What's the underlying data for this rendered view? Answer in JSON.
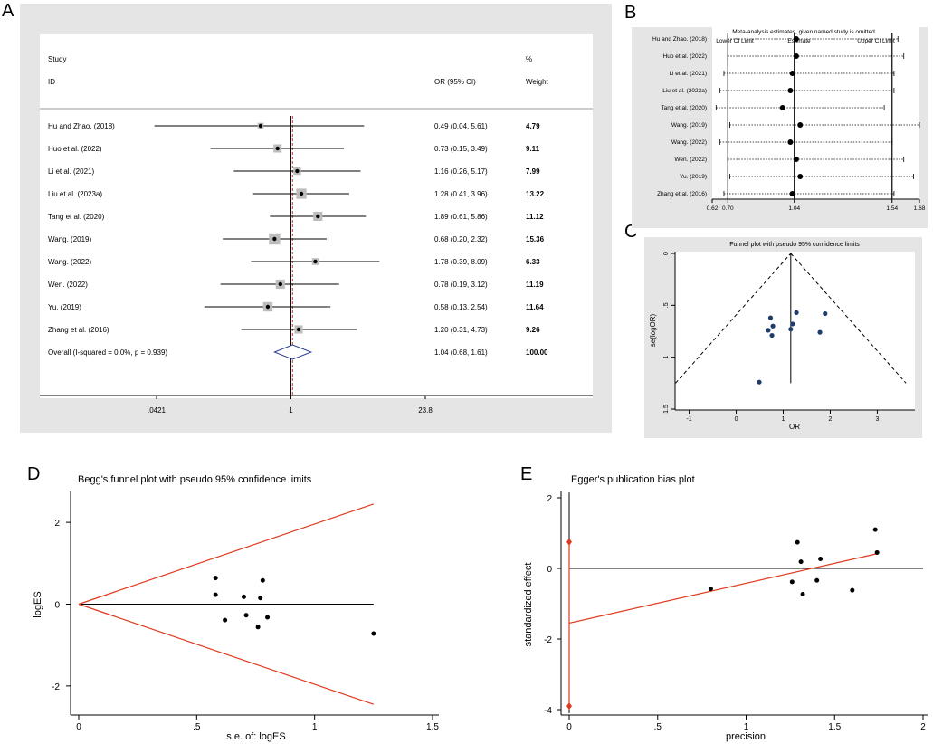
{
  "panels": {
    "A": "A",
    "B": "B",
    "C": "C",
    "D": "D",
    "E": "E"
  },
  "chart_data": [
    {
      "id": "A",
      "type": "forest",
      "col_study": "Study",
      "col_id": "ID",
      "col_pct": "%",
      "col_or": "OR (95% CI)",
      "col_weight": "Weight",
      "xticks": [
        ".0421",
        "1",
        "23.8"
      ],
      "xlim_log": [
        0.0421,
        23.8
      ],
      "studies": [
        {
          "name": "Hu and Zhao. (2018)",
          "or": 0.49,
          "lo": 0.04,
          "hi": 5.61,
          "ci": "0.49 (0.04, 5.61)",
          "weight": "4.79"
        },
        {
          "name": "Huo et al. (2022)",
          "or": 0.73,
          "lo": 0.15,
          "hi": 3.49,
          "ci": "0.73 (0.15, 3.49)",
          "weight": "9.11"
        },
        {
          "name": "Li et al. (2021)",
          "or": 1.16,
          "lo": 0.26,
          "hi": 5.17,
          "ci": "1.16 (0.26, 5.17)",
          "weight": "7.99"
        },
        {
          "name": "Liu et al. (2023a)",
          "or": 1.28,
          "lo": 0.41,
          "hi": 3.96,
          "ci": "1.28 (0.41, 3.96)",
          "weight": "13.22"
        },
        {
          "name": "Tang et al. (2020)",
          "or": 1.89,
          "lo": 0.61,
          "hi": 5.86,
          "ci": "1.89 (0.61, 5.86)",
          "weight": "11.12"
        },
        {
          "name": "Wang. (2019)",
          "or": 0.68,
          "lo": 0.2,
          "hi": 2.32,
          "ci": "0.68 (0.20, 2.32)",
          "weight": "15.36"
        },
        {
          "name": "Wang. (2022)",
          "or": 1.78,
          "lo": 0.39,
          "hi": 8.09,
          "ci": "1.78 (0.39, 8.09)",
          "weight": "6.33"
        },
        {
          "name": "Wen. (2022)",
          "or": 0.78,
          "lo": 0.19,
          "hi": 3.12,
          "ci": "0.78 (0.19, 3.12)",
          "weight": "11.19"
        },
        {
          "name": "Yu. (2019)",
          "or": 0.58,
          "lo": 0.13,
          "hi": 2.54,
          "ci": "0.58 (0.13, 2.54)",
          "weight": "11.64"
        },
        {
          "name": "Zhang et al. (2016)",
          "or": 1.2,
          "lo": 0.31,
          "hi": 4.73,
          "ci": "1.20 (0.31, 4.73)",
          "weight": "9.26"
        }
      ],
      "overall": {
        "label": "Overall  (I-squared = 0.0%, p = 0.939)",
        "or": 1.04,
        "lo": 0.68,
        "hi": 1.61,
        "ci": "1.04 (0.68, 1.61)",
        "weight": "100.00"
      }
    },
    {
      "id": "B",
      "type": "sensitivity",
      "title": "Meta-analysis estimates, given named study is omitted",
      "lower_label": "Lower CI Limit",
      "estimate_label": "Estimate",
      "upper_label": "Upper CI Limit",
      "xlim": [
        0.62,
        1.68
      ],
      "xticks": [
        0.62,
        0.7,
        1.04,
        1.54,
        1.68
      ],
      "xtick_labels": [
        "0.62",
        "0.70",
        "1.04",
        "1.54",
        "1.68"
      ],
      "ref_lines": [
        0.7,
        1.04,
        1.54
      ],
      "rows": [
        {
          "name": "Hu and Zhao. (2018)",
          "est": 1.05,
          "lo": 0.7,
          "hi": 1.57
        },
        {
          "name": "Huo et al. (2022)",
          "est": 1.05,
          "lo": 0.7,
          "hi": 1.6
        },
        {
          "name": "Li et al. (2021)",
          "est": 1.03,
          "lo": 0.68,
          "hi": 1.55
        },
        {
          "name": "Liu et al. (2023a)",
          "est": 1.02,
          "lo": 0.66,
          "hi": 1.55
        },
        {
          "name": "Tang et al. (2020)",
          "est": 0.98,
          "lo": 0.64,
          "hi": 1.5
        },
        {
          "name": "Wang. (2019)",
          "est": 1.07,
          "lo": 0.71,
          "hi": 1.68
        },
        {
          "name": "Wang. (2022)",
          "est": 1.02,
          "lo": 0.66,
          "hi": 1.54
        },
        {
          "name": "Wen. (2022)",
          "est": 1.05,
          "lo": 0.7,
          "hi": 1.6
        },
        {
          "name": "Yu. (2019)",
          "est": 1.07,
          "lo": 0.71,
          "hi": 1.65
        },
        {
          "name": "Zhang et al. (2016)",
          "est": 1.03,
          "lo": 0.68,
          "hi": 1.55
        }
      ]
    },
    {
      "id": "C",
      "type": "scatter",
      "title": "Funnel plot with pseudo 95% confidence limits",
      "xlabel": "OR",
      "ylabel": "se(logOR)",
      "xlim": [
        -1.3,
        3.8
      ],
      "ylim": [
        0,
        1.5
      ],
      "xticks": [
        "-1",
        "0",
        "1",
        "2",
        "3"
      ],
      "yticks": [
        "0",
        ".5",
        "1",
        "1.5"
      ],
      "center": 1.16,
      "points": [
        [
          0.73,
          0.62
        ],
        [
          0.78,
          0.7
        ],
        [
          0.68,
          0.74
        ],
        [
          0.76,
          0.79
        ],
        [
          1.16,
          0.73
        ],
        [
          1.2,
          0.68
        ],
        [
          1.28,
          0.57
        ],
        [
          1.78,
          0.76
        ],
        [
          1.89,
          0.58
        ],
        [
          0.49,
          1.24
        ]
      ]
    },
    {
      "id": "D",
      "type": "scatter",
      "title": "Begg's funnel plot with pseudo 95% confidence limits",
      "xlabel": "s.e. of: logES",
      "ylabel": "logES",
      "xlim": [
        0,
        1.5
      ],
      "ylim": [
        -2.6,
        2.6
      ],
      "xticks": [
        "0",
        ".5",
        "1",
        "1.5"
      ],
      "yticks": [
        "2",
        "0",
        "-2"
      ],
      "points": [
        [
          0.58,
          0.64
        ],
        [
          0.58,
          0.23
        ],
        [
          0.62,
          -0.39
        ],
        [
          0.7,
          0.18
        ],
        [
          0.71,
          -0.27
        ],
        [
          0.76,
          -0.56
        ],
        [
          0.77,
          0.15
        ],
        [
          0.78,
          0.58
        ],
        [
          0.8,
          -0.32
        ],
        [
          1.25,
          -0.72
        ]
      ]
    },
    {
      "id": "E",
      "type": "scatter",
      "title": "Egger's publication bias plot",
      "xlabel": "precision",
      "ylabel": "standardized effect",
      "xlim": [
        -0.05,
        2.0
      ],
      "ylim": [
        -4.2,
        2.2
      ],
      "xticks": [
        "0",
        ".5",
        "1",
        "1.5",
        "2"
      ],
      "yticks": [
        "2",
        "0",
        "-2",
        "-4"
      ],
      "ci_top": 0.75,
      "ci_bottom": -3.9,
      "intercept": -1.55,
      "slope": 1.13,
      "points": [
        [
          0.8,
          -0.58
        ],
        [
          1.26,
          -0.38
        ],
        [
          1.29,
          0.74
        ],
        [
          1.31,
          0.19
        ],
        [
          1.32,
          -0.73
        ],
        [
          1.4,
          -0.34
        ],
        [
          1.42,
          0.27
        ],
        [
          1.6,
          -0.62
        ],
        [
          1.73,
          1.1
        ],
        [
          1.74,
          0.45
        ]
      ]
    }
  ]
}
